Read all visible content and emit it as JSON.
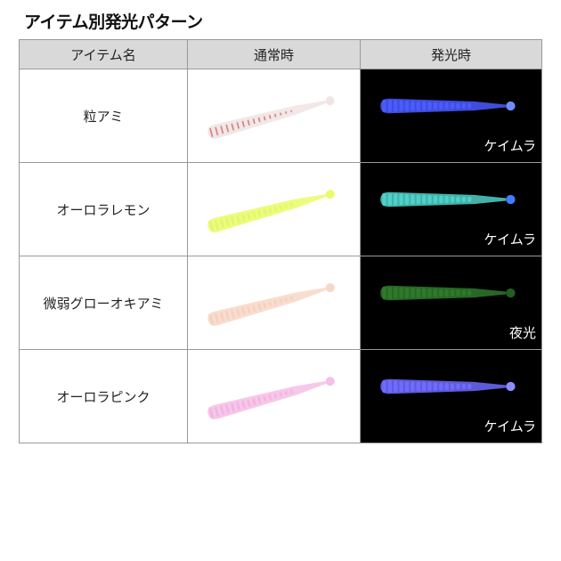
{
  "title": "アイテム別発光パターン",
  "table": {
    "headers": [
      "アイテム名",
      "通常時",
      "発光時"
    ],
    "rows": [
      {
        "name": "粒アミ",
        "glow_label": "ケイムラ",
        "normal_color": "#f1e4e4",
        "normal_accent": "#c0302a",
        "glow_color": "#4a5bff",
        "glow_tail": "#6f8cff"
      },
      {
        "name": "オーロラレモン",
        "glow_label": "ケイムラ",
        "normal_color": "#e9fb6a",
        "normal_accent": "#d4ea9a",
        "glow_color": "#4fd0c8",
        "glow_tail": "#3f7cff"
      },
      {
        "name": "微弱グローオキアミ",
        "glow_label": "夜光",
        "normal_color": "#f7d8c8",
        "normal_accent": "#f0c6b2",
        "glow_color": "#2e7a2a",
        "glow_tail": "#225e22"
      },
      {
        "name": "オーロラピンク",
        "glow_label": "ケイムラ",
        "normal_color": "#f5bfe6",
        "normal_accent": "#e9a6d9",
        "glow_color": "#6f6bff",
        "glow_tail": "#8a8cff"
      }
    ]
  }
}
